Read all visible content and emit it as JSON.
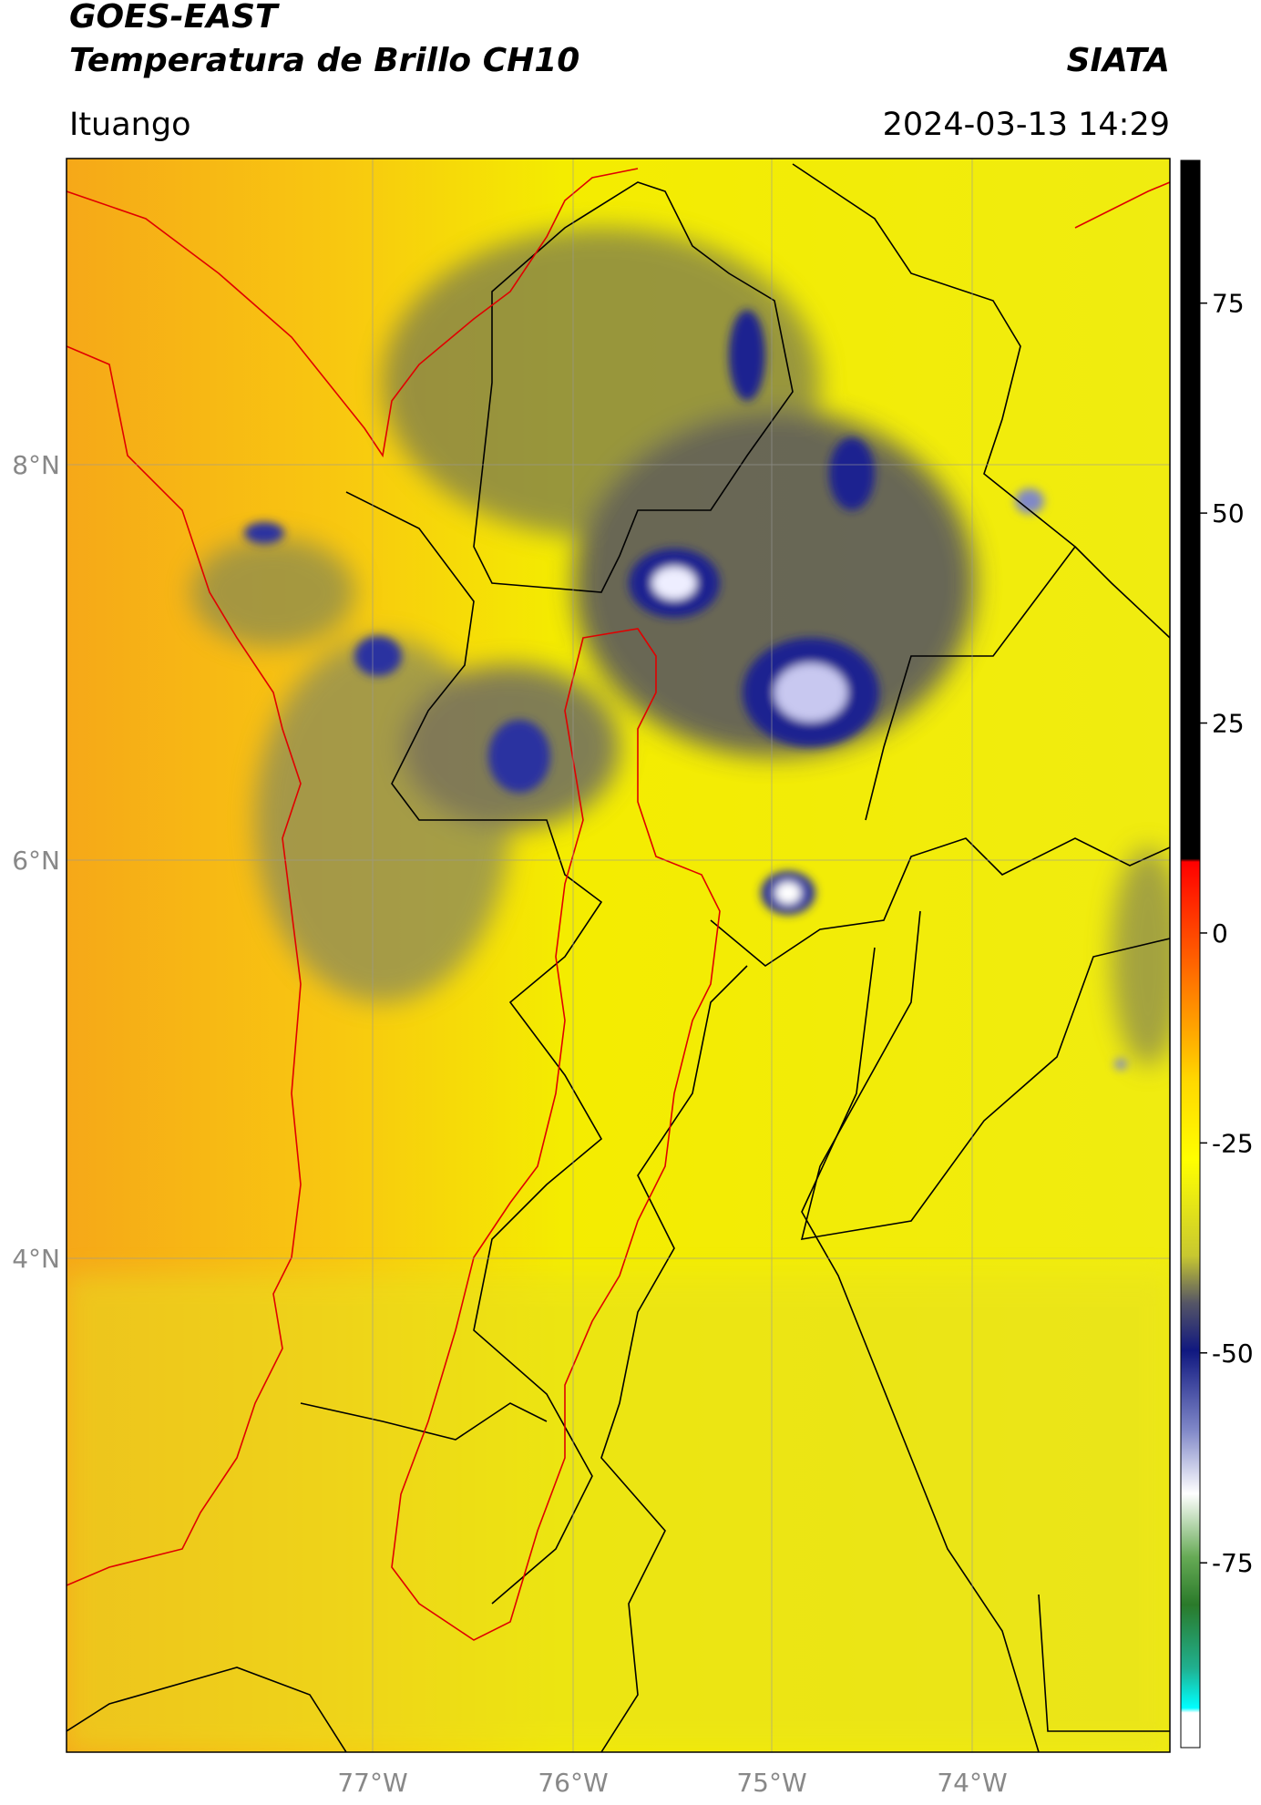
{
  "header": {
    "title": "GOES-EAST",
    "subtitle": "Temperatura de Brillo CH10",
    "org": "SIATA",
    "location": "Ituango",
    "datetime": "2024-03-13 14:29"
  },
  "map": {
    "lat_labels": [
      "8°N",
      "6°N",
      "4°N"
    ],
    "lon_labels": [
      "77°W",
      "76°W",
      "75°W",
      "74°W"
    ]
  },
  "colorbar": {
    "lim": [
      -97,
      92
    ],
    "ticks": [
      75,
      50,
      25,
      0,
      -25,
      -50,
      -75
    ]
  }
}
